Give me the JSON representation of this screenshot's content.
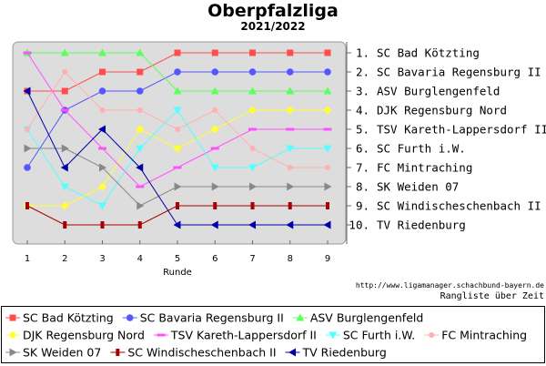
{
  "title": "Oberpfalzliga",
  "subtitle": "2021/2022",
  "source": "http://www.ligamanager.schachbund-bayern.de",
  "caption": "Rangliste über Zeit",
  "chart_data": {
    "type": "line",
    "title": "Oberpfalzliga",
    "subtitle": "2021/2022",
    "xlabel": "Runde",
    "ylabel": "",
    "x": [
      1,
      2,
      3,
      4,
      5,
      6,
      7,
      8,
      9
    ],
    "xlim": [
      1,
      9
    ],
    "ylim": [
      1,
      10
    ],
    "y_inverted": true,
    "grid": false,
    "background": "#dddddd",
    "legend_position": "bottom",
    "right_labels": [
      "1. SC Bad Kötzting",
      "2. SC Bavaria Regensburg II",
      "3. ASV Burglengenfeld",
      "4. DJK Regensburg Nord",
      "5. TSV Kareth-Lappersdorf II",
      "6. SC Furth i.W.",
      "7. FC Mintraching",
      "8. SK Weiden 07",
      "9. SC Windischeschenbach II",
      "10. TV Riedenburg"
    ],
    "series": [
      {
        "name": "SC Bad Kötzting",
        "color": "#ff4d4d",
        "marker": "square",
        "values": [
          3,
          3,
          2,
          2,
          1,
          1,
          1,
          1,
          1
        ]
      },
      {
        "name": "SC Bavaria Regensburg II",
        "color": "#5656ff",
        "marker": "circle",
        "values": [
          7,
          4,
          3,
          3,
          2,
          2,
          2,
          2,
          2
        ]
      },
      {
        "name": "ASV Burglengenfeld",
        "color": "#5cff5c",
        "marker": "triangle-up",
        "values": [
          1,
          1,
          1,
          1,
          3,
          3,
          3,
          3,
          3
        ]
      },
      {
        "name": "DJK Regensburg Nord",
        "color": "#ffff33",
        "marker": "diamond",
        "values": [
          9,
          9,
          8,
          5,
          6,
          5,
          4,
          4,
          4
        ]
      },
      {
        "name": "TSV Kareth-Lappersdorf II",
        "color": "#ff52ff",
        "marker": "tick",
        "values": [
          1,
          4,
          6,
          8,
          7,
          6,
          5,
          5,
          5
        ]
      },
      {
        "name": "SC Furth i.W.",
        "color": "#55ffff",
        "marker": "triangle-down",
        "values": [
          5,
          8,
          9,
          6,
          4,
          7,
          7,
          6,
          6
        ]
      },
      {
        "name": "FC Mintraching",
        "color": "#ffb0b0",
        "marker": "circle-small",
        "values": [
          5,
          2,
          4,
          4,
          5,
          4,
          6,
          7,
          7
        ]
      },
      {
        "name": "SK Weiden 07",
        "color": "#888888",
        "marker": "triangle-right",
        "values": [
          6,
          6,
          7,
          9,
          8,
          8,
          8,
          8,
          8
        ]
      },
      {
        "name": "SC Windischeschenbach II",
        "color": "#a60000",
        "marker": "bar-square",
        "values": [
          9,
          10,
          10,
          10,
          9,
          9,
          9,
          9,
          9
        ]
      },
      {
        "name": "TV Riedenburg",
        "color": "#0000aa",
        "marker": "triangle-left",
        "values": [
          3,
          7,
          5,
          7,
          10,
          10,
          10,
          10,
          10
        ]
      }
    ]
  }
}
